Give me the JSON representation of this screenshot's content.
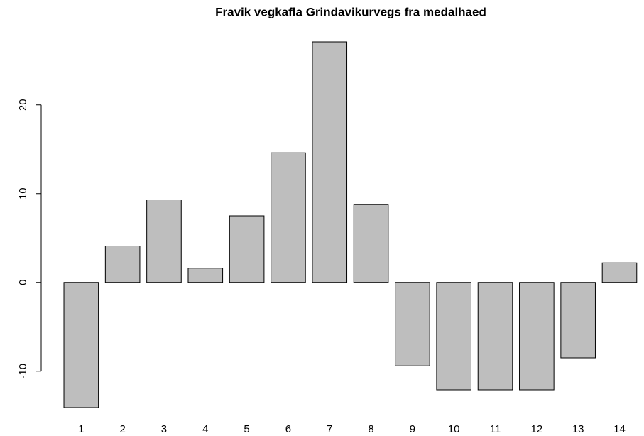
{
  "chart_data": {
    "type": "bar",
    "title": "Fravik vegkafla Grindavikurvegs fra medalhaed",
    "categories": [
      "1",
      "2",
      "3",
      "4",
      "5",
      "6",
      "7",
      "8",
      "9",
      "10",
      "11",
      "12",
      "13",
      "14"
    ],
    "values": [
      -14.1,
      4.1,
      9.3,
      1.6,
      7.5,
      14.6,
      27.1,
      8.8,
      -9.4,
      -12.1,
      -12.1,
      -12.1,
      -8.5,
      2.2
    ],
    "color": "#bebebe",
    "ylim": [
      -15.7,
      28.7
    ],
    "yticks": [
      -10,
      0,
      10,
      20
    ],
    "grid": false
  }
}
